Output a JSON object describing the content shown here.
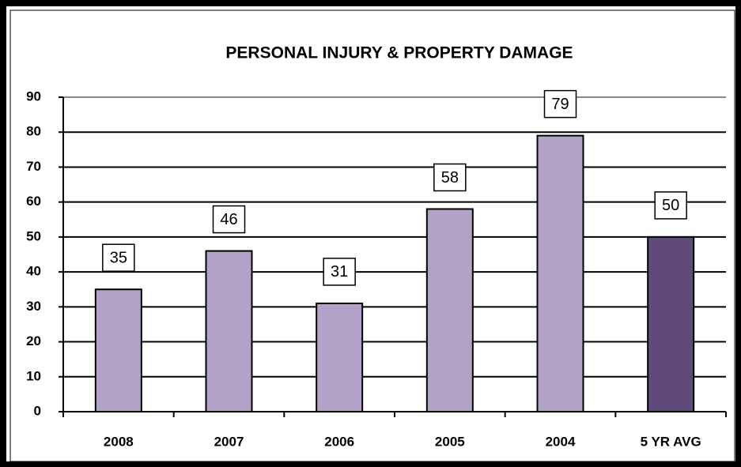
{
  "chart_data": {
    "type": "bar",
    "title": "PERSONAL INJURY & PROPERTY DAMAGE",
    "categories": [
      "2008",
      "2007",
      "2006",
      "2005",
      "2004",
      "5 YR AVG"
    ],
    "values": [
      35,
      46,
      31,
      58,
      79,
      50
    ],
    "colors": [
      "#b3a2c7",
      "#b3a2c7",
      "#b3a2c7",
      "#b3a2c7",
      "#b3a2c7",
      "#604a7b"
    ],
    "ylim": [
      0,
      90
    ],
    "yticks": [
      0,
      10,
      20,
      30,
      40,
      50,
      60,
      70,
      80,
      90
    ],
    "grid": true
  }
}
